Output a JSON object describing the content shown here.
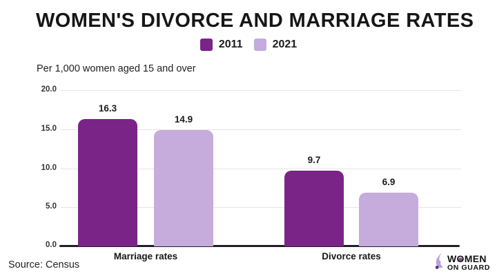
{
  "title": "WOMEN'S DIVORCE AND MARRIAGE RATES",
  "subtitle": "Per 1,000 women aged 15 and over",
  "source": "Source: Census",
  "colors": {
    "series_2011": "#7A2487",
    "series_2021": "#C5ACDC",
    "axis": "#221c24",
    "grid": "#e4e4e4",
    "logo_accent": "#8f3f97",
    "logo_icon_light": "#B9A0D8",
    "logo_icon_dark": "#5B2D7F"
  },
  "chart_data": {
    "type": "bar",
    "categories": [
      "Marriage rates",
      "Divorce rates"
    ],
    "series": [
      {
        "name": "2011",
        "color": "#7A2487",
        "values": [
          16.3,
          9.7
        ]
      },
      {
        "name": "2021",
        "color": "#C5ACDC",
        "values": [
          14.9,
          6.9
        ]
      }
    ],
    "title": "WOMEN'S DIVORCE AND MARRIAGE RATES",
    "subtitle": "Per 1,000 women aged 15 and over",
    "xlabel": "",
    "ylabel": "Per 1,000 women aged 15 and over",
    "ylim": [
      0,
      20
    ],
    "yticks": [
      "20.0",
      "15.0",
      "10.0",
      "5.0",
      "0.0"
    ],
    "grid": "horizontal",
    "legend_position": "top"
  },
  "logo": {
    "line1_pre": "W",
    "line1_o": "O",
    "line1_post": "MEN",
    "line2": "ON GUARD"
  }
}
